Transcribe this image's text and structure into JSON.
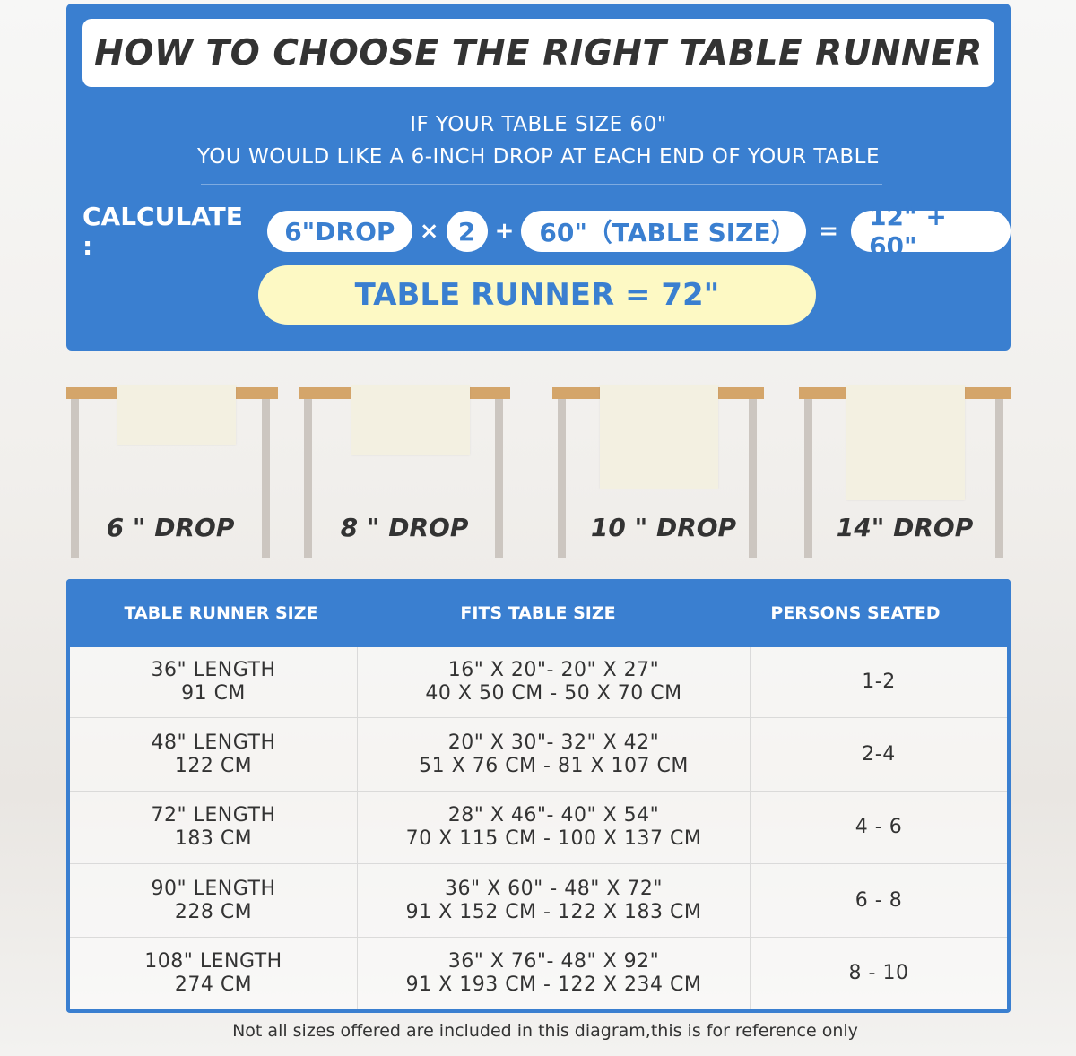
{
  "header": {
    "title": "HOW TO CHOOSE THE RIGHT TABLE RUNNER",
    "subtitle_line1": "IF YOUR TABLE SIZE 60\"",
    "subtitle_line2": "YOU WOULD LIKE A 6-INCH DROP AT EACH END OF YOUR TABLE"
  },
  "calculation": {
    "label": "CALCULATE :",
    "drop": "6\"DROP",
    "times": "×",
    "multiplier": "2",
    "plus": "+",
    "table_size": "60\"（TABLE SIZE）",
    "equals": "=",
    "sum": "12\" + 60\"",
    "result": "TABLE RUNNER = 72\""
  },
  "drops": [
    {
      "label": "6 \" DROP"
    },
    {
      "label": "8 \" DROP"
    },
    {
      "label": "10 \" DROP"
    },
    {
      "label": "14\" DROP"
    }
  ],
  "table": {
    "headers": [
      "TABLE RUNNER SIZE",
      "FITS TABLE SIZE",
      "PERSONS SEATED"
    ],
    "rows": [
      {
        "size": [
          "36\" LENGTH",
          "91 CM"
        ],
        "fits": [
          "16\" X 20\"- 20\" X 27\"",
          "40 X 50 CM - 50 X 70 CM"
        ],
        "persons": "1-2"
      },
      {
        "size": [
          "48\" LENGTH",
          "122 CM"
        ],
        "fits": [
          "20\" X 30\"- 32\" X 42\"",
          "51 X 76 CM - 81 X 107 CM"
        ],
        "persons": "2-4"
      },
      {
        "size": [
          "72\" LENGTH",
          "183 CM"
        ],
        "fits": [
          "28\" X 46\"- 40\" X 54\"",
          "70 X 115 CM - 100 X 137 CM"
        ],
        "persons": "4 - 6"
      },
      {
        "size": [
          "90\" LENGTH",
          "228 CM"
        ],
        "fits": [
          "36\" X 60\" - 48\" X 72\"",
          "91 X 152 CM - 122 X 183 CM"
        ],
        "persons": "6 - 8"
      },
      {
        "size": [
          "108\" LENGTH",
          "274 CM"
        ],
        "fits": [
          "36\" X 76\"- 48\" X 92\"",
          "91 X 193 CM - 122 X 234 CM"
        ],
        "persons": "8 - 10"
      }
    ]
  },
  "footnote": "Not all sizes offered are included in this diagram,this is for reference only",
  "colors": {
    "brand_blue": "#3a7fd0",
    "result_yellow": "#fdf9c4",
    "table_wood": "#d4a56a",
    "runner": "#f3f0e1"
  }
}
